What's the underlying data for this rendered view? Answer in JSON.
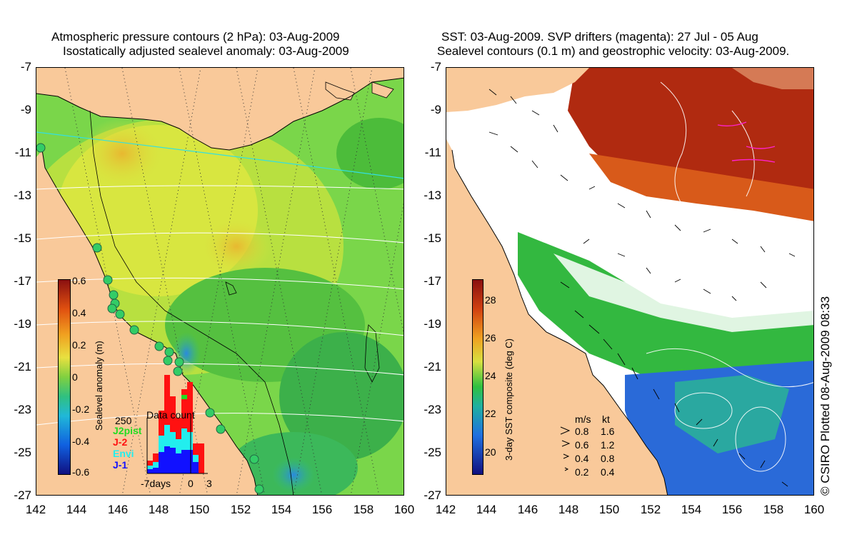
{
  "left_panel": {
    "title_line1": "Atmospheric pressure contours (2 hPa): 03-Aug-2009",
    "title_line2": "Isostatically adjusted sealevel anomaly: 03-Aug-2009",
    "colorbar_label": "Sealevel anomaly (m)",
    "colorbar_ticks": [
      "0.6",
      "0.4",
      "0.2",
      "0",
      "-0.2",
      "-0.4",
      "-0.6"
    ],
    "histogram": {
      "title": "Data count",
      "max_label": "250",
      "x_labels": [
        "-7days",
        "0",
        "3"
      ],
      "legend": [
        {
          "name": "J2pist",
          "color": "#22dd22"
        },
        {
          "name": "J-2",
          "color": "#ff1111"
        },
        {
          "name": "Envi",
          "color": "#22eeee"
        },
        {
          "name": "J-1",
          "color": "#1111ff"
        }
      ]
    }
  },
  "right_panel": {
    "title_line1": "SST: 03-Aug-2009. SVP drifters (magenta): 27 Jul - 05 Aug",
    "title_line2": "Sealevel contours (0.1 m) and geostrophic velocity: 03-Aug-2009.",
    "colorbar_label": "3-day SST composite (deg C)",
    "colorbar_ticks": [
      "28",
      "26",
      "24",
      "22",
      "20"
    ],
    "velocity_legend": {
      "header_ms": "m/s",
      "header_kt": "kt",
      "rows": [
        {
          "ms": "0.8",
          "kt": "1.6"
        },
        {
          "ms": "0.6",
          "kt": "1.2"
        },
        {
          "ms": "0.4",
          "kt": "0.8"
        },
        {
          "ms": "0.2",
          "kt": "0.4"
        }
      ]
    }
  },
  "axes": {
    "lat_ticks": [
      "-7",
      "-9",
      "-11",
      "-13",
      "-15",
      "-17",
      "-19",
      "-21",
      "-23",
      "-25",
      "-27"
    ],
    "lon_ticks": [
      "142",
      "144",
      "146",
      "148",
      "150",
      "152",
      "154",
      "156",
      "158",
      "160"
    ]
  },
  "credit": "© CSIRO Plotted 08-Aug-2009 08:33",
  "colors": {
    "land": "#f9c99a",
    "sla_green": "#66cc33",
    "sla_yellow": "#d8e640",
    "sst_red": "#b02a10",
    "sst_green": "#33b840",
    "sst_blue": "#2a6ad8"
  }
}
